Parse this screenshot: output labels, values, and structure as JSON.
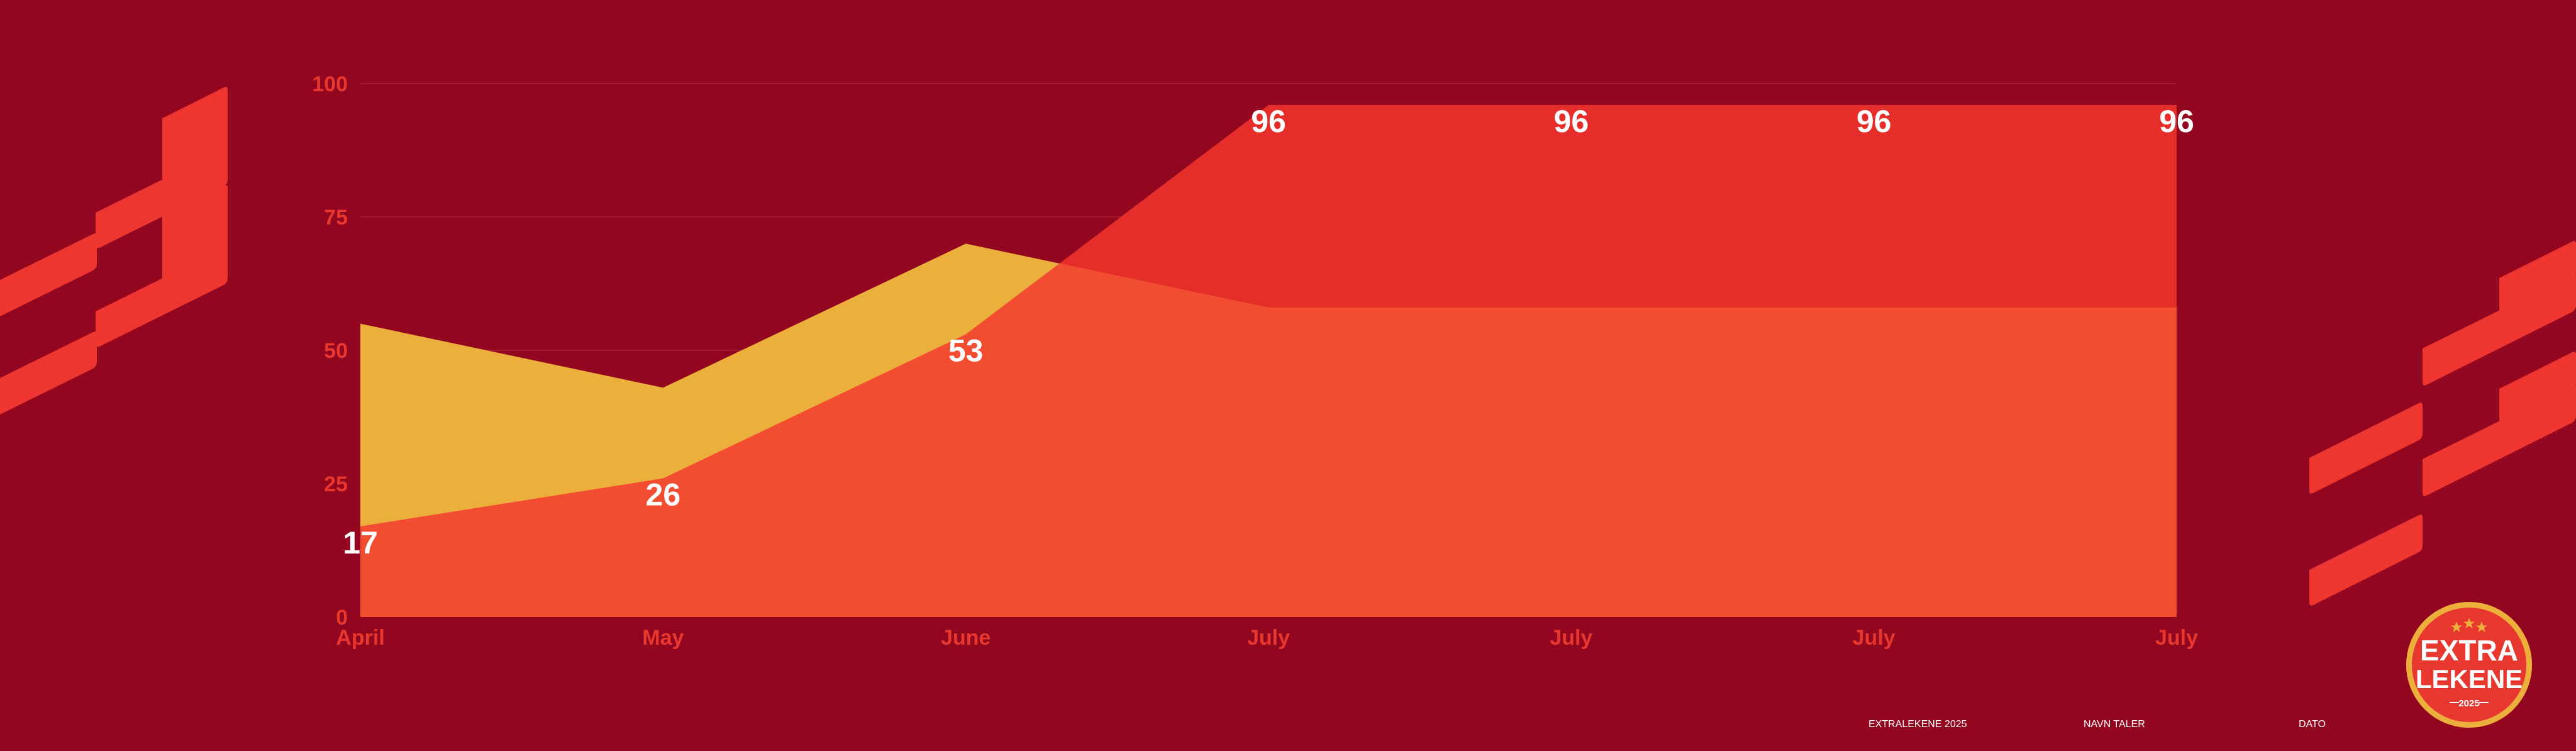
{
  "colors": {
    "background": "#92061f",
    "accent": "#e8372e",
    "series_red": "#e52d2a",
    "series_orange": "#f24d30",
    "series_yellow": "#ecaf3c",
    "white": "#ffffff"
  },
  "chart_data": {
    "type": "area",
    "categories": [
      "April",
      "May",
      "June",
      "July",
      "July",
      "July",
      "July"
    ],
    "ylim": [
      0,
      100
    ],
    "yticks": [
      "0",
      "25",
      "50",
      "75",
      "100"
    ],
    "grid": true,
    "series": [
      {
        "values": [
          17,
          26,
          53,
          96,
          96,
          96,
          96
        ],
        "data_labels": [
          "17",
          "26",
          "53",
          "96",
          "96",
          "96",
          "96"
        ],
        "color": "#e52d2a"
      },
      {
        "values": [
          55,
          43,
          70,
          58,
          58,
          58,
          58
        ],
        "color": "#ecaf3c"
      }
    ]
  },
  "footer": {
    "items": [
      "EXTRALEKENE 2025",
      "NAVN TALER",
      "DATO"
    ]
  },
  "logo": {
    "line1": "EXTRA",
    "line2": "LEKENE",
    "year": "2025"
  }
}
